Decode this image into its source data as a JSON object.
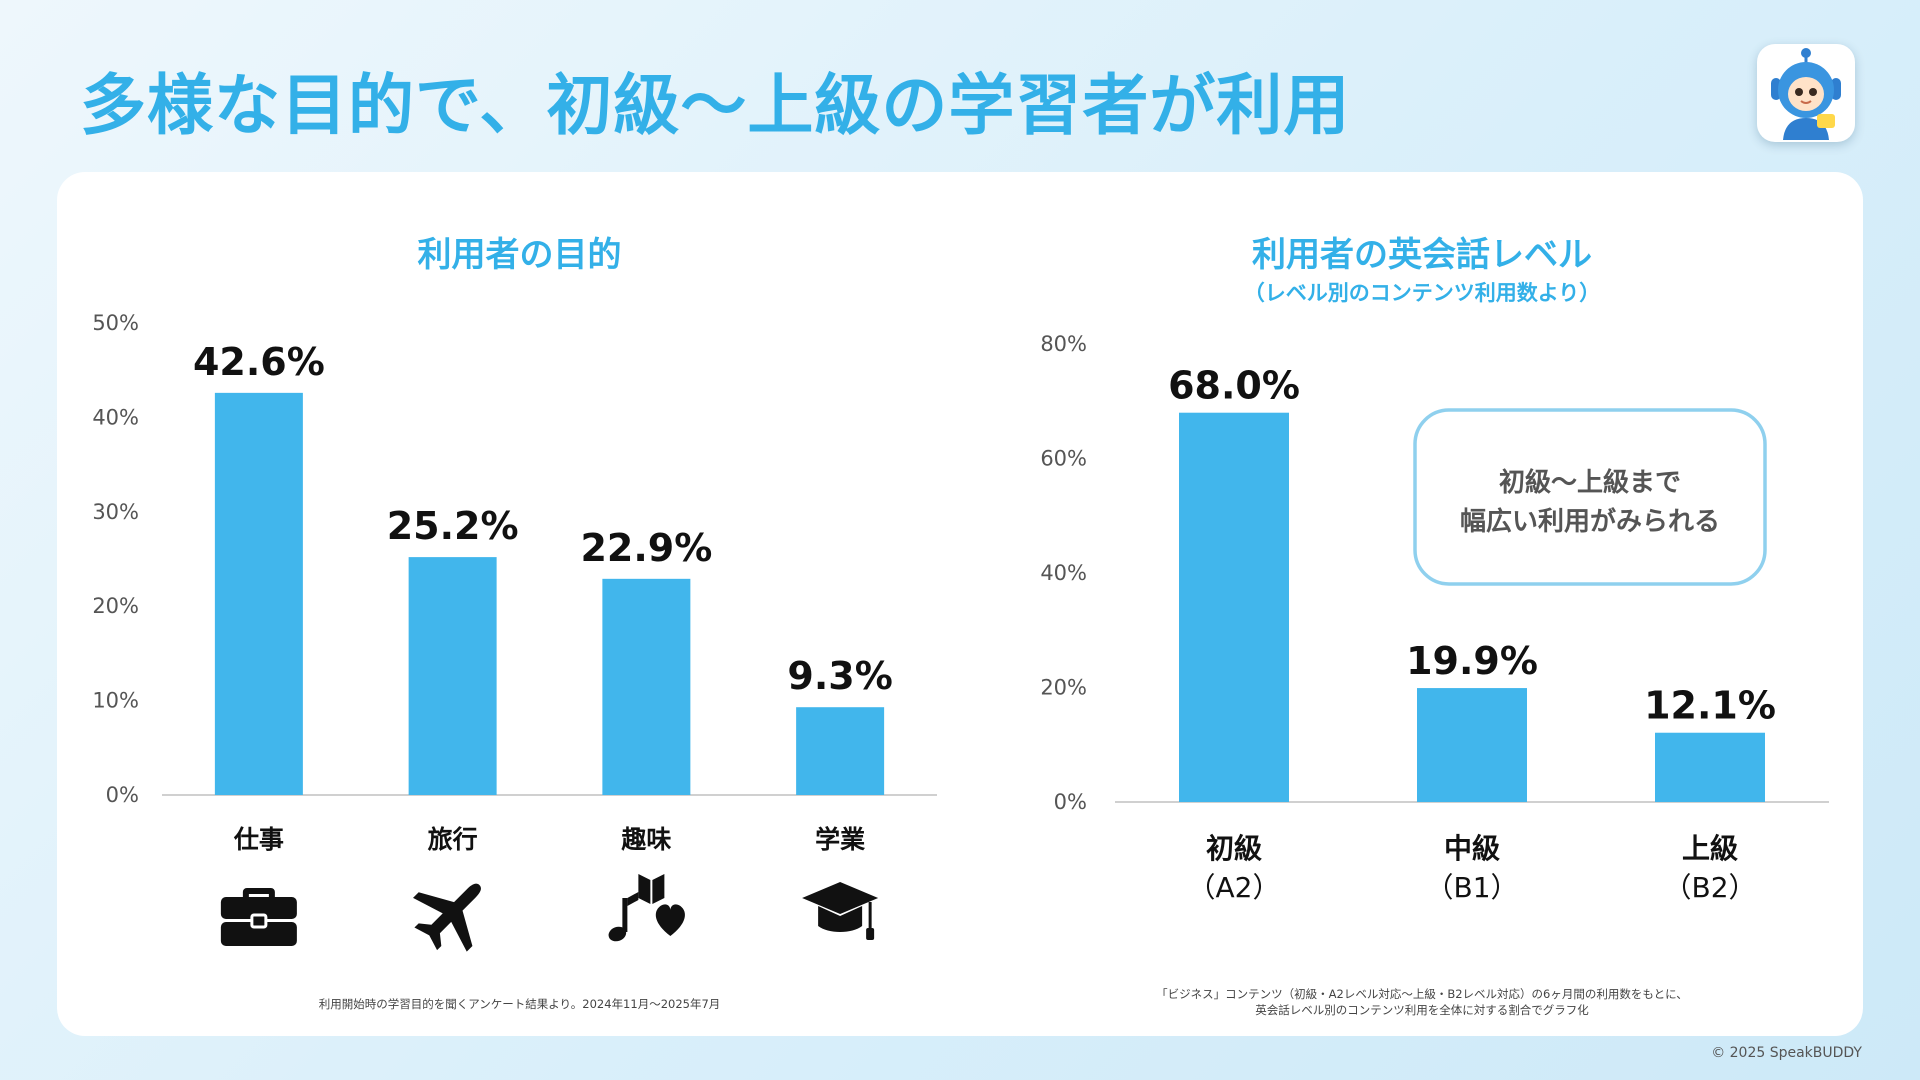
{
  "header": {
    "title": "多様な目的で、初級〜上級の学習者が利用"
  },
  "colors": {
    "accent": "#33b0e8",
    "bar": "#41b6ec",
    "callout_border": "#8fd0ee"
  },
  "chart_data": [
    {
      "type": "bar",
      "title": "利用者の目的",
      "categories": [
        "仕事",
        "旅行",
        "趣味",
        "学業"
      ],
      "values": [
        42.6,
        25.2,
        22.9,
        9.3
      ],
      "value_labels": [
        "42.6%",
        "25.2%",
        "22.9%",
        "9.3%"
      ],
      "category_icons": [
        "briefcase-icon",
        "airplane-icon",
        "music-book-heart-icon",
        "graduation-cap-icon"
      ],
      "yticks": [
        "0%",
        "10%",
        "20%",
        "30%",
        "40%",
        "50%"
      ],
      "ylim": [
        0,
        50
      ],
      "grid": false,
      "footnote": "利用開始時の学習目的を聞くアンケート結果より。2024年11月〜2025年7月"
    },
    {
      "type": "bar",
      "title": "利用者の英会話レベル",
      "subtitle": "（レベル別のコンテンツ利用数より）",
      "categories": [
        "初級",
        "中級",
        "上級"
      ],
      "category_sublabels": [
        "（A2）",
        "（B1）",
        "（B2）"
      ],
      "values": [
        68.0,
        19.9,
        12.1
      ],
      "value_labels": [
        "68.0%",
        "19.9%",
        "12.1%"
      ],
      "yticks": [
        "0%",
        "20%",
        "40%",
        "60%",
        "80%"
      ],
      "ylim": [
        0,
        80
      ],
      "grid": false,
      "annotation": [
        "初級〜上級まで",
        "幅広い利用がみられる"
      ],
      "footnote": [
        "「ビジネス」コンテンツ（初級・A2レベル対応〜上級・B2レベル対応）の6ヶ月間の利用数をもとに、",
        "英会話レベル別のコンテンツ利用を全体に対する割合でグラフ化"
      ]
    }
  ],
  "footer": {
    "copyright": "© 2025 SpeakBUDDY"
  }
}
